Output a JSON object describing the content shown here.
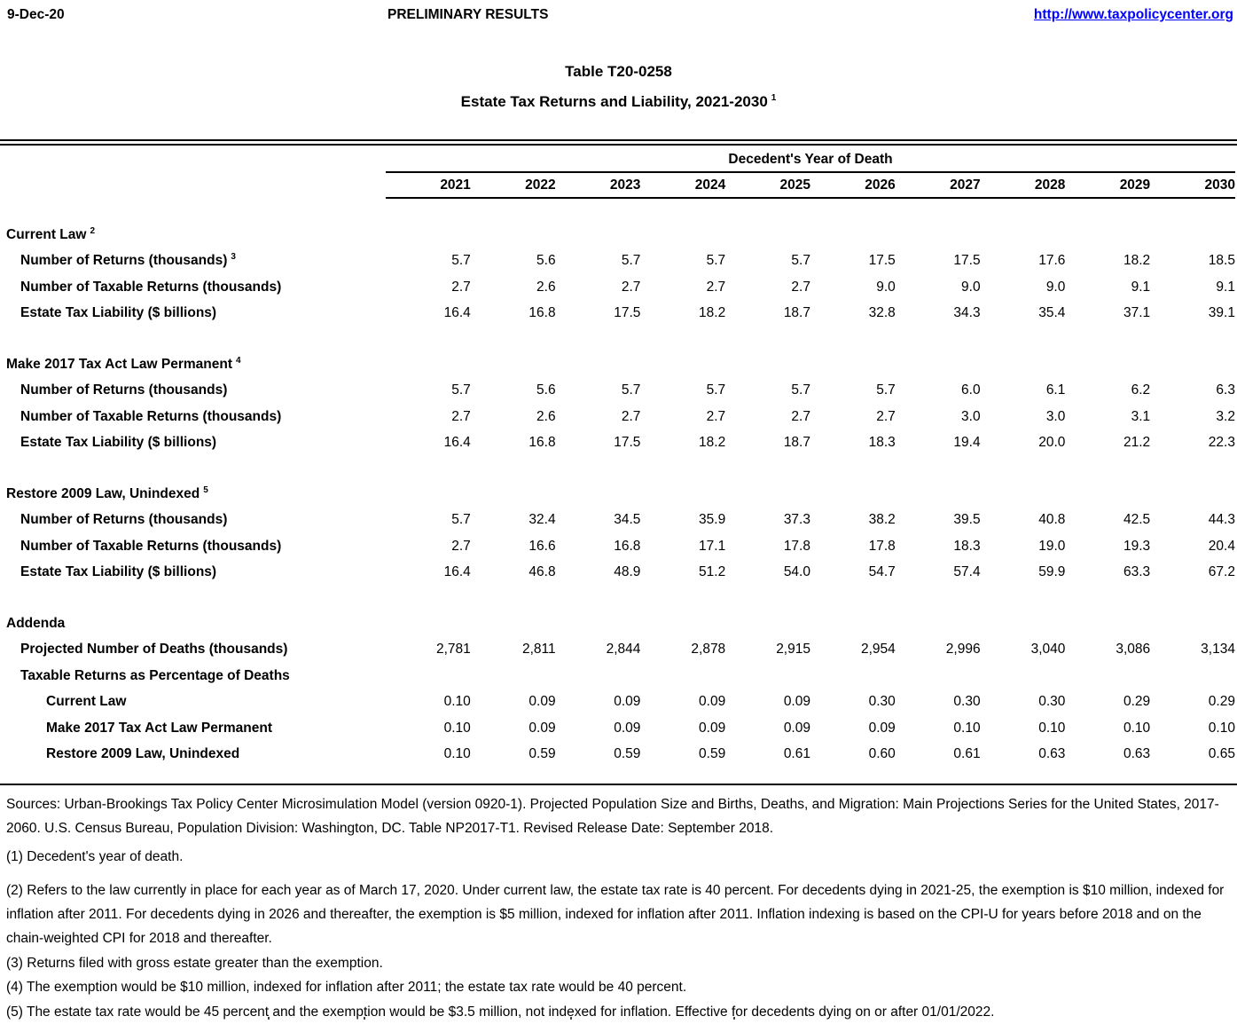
{
  "header": {
    "date": "9-Dec-20",
    "status": "PRELIMINARY RESULTS",
    "url": "http://www.taxpolicycenter.org"
  },
  "title": {
    "line1": "Table T20-0258",
    "line2": "Estate Tax Returns and Liability, 2021-2030",
    "footnote": "1"
  },
  "table": {
    "span_header": "Decedent's Year of Death",
    "years": [
      "2021",
      "2022",
      "2023",
      "2024",
      "2025",
      "2026",
      "2027",
      "2028",
      "2029",
      "2030"
    ],
    "sections": [
      {
        "title": "Current Law",
        "footnote": "2",
        "rows": [
          {
            "label": "Number of Returns (thousands)",
            "footnote": "3",
            "indent": 1,
            "values": [
              "5.7",
              "5.6",
              "5.7",
              "5.7",
              "5.7",
              "17.5",
              "17.5",
              "17.6",
              "18.2",
              "18.5"
            ]
          },
          {
            "label": "Number of Taxable Returns (thousands)",
            "indent": 1,
            "values": [
              "2.7",
              "2.6",
              "2.7",
              "2.7",
              "2.7",
              "9.0",
              "9.0",
              "9.0",
              "9.1",
              "9.1"
            ]
          },
          {
            "label": "Estate Tax Liability ($ billions)",
            "indent": 1,
            "values": [
              "16.4",
              "16.8",
              "17.5",
              "18.2",
              "18.7",
              "32.8",
              "34.3",
              "35.4",
              "37.1",
              "39.1"
            ]
          }
        ]
      },
      {
        "title": "Make 2017 Tax Act Law Permanent",
        "footnote": "4",
        "rows": [
          {
            "label": "Number of Returns (thousands)",
            "indent": 1,
            "values": [
              "5.7",
              "5.6",
              "5.7",
              "5.7",
              "5.7",
              "5.7",
              "6.0",
              "6.1",
              "6.2",
              "6.3"
            ]
          },
          {
            "label": "Number of Taxable Returns (thousands)",
            "indent": 1,
            "values": [
              "2.7",
              "2.6",
              "2.7",
              "2.7",
              "2.7",
              "2.7",
              "3.0",
              "3.0",
              "3.1",
              "3.2"
            ]
          },
          {
            "label": "Estate Tax Liability ($ billions)",
            "indent": 1,
            "values": [
              "16.4",
              "16.8",
              "17.5",
              "18.2",
              "18.7",
              "18.3",
              "19.4",
              "20.0",
              "21.2",
              "22.3"
            ]
          }
        ]
      },
      {
        "title": "Restore 2009 Law, Unindexed",
        "footnote": "5",
        "rows": [
          {
            "label": "Number of Returns (thousands)",
            "indent": 1,
            "values": [
              "5.7",
              "32.4",
              "34.5",
              "35.9",
              "37.3",
              "38.2",
              "39.5",
              "40.8",
              "42.5",
              "44.3"
            ]
          },
          {
            "label": "Number of Taxable Returns (thousands)",
            "indent": 1,
            "values": [
              "2.7",
              "16.6",
              "16.8",
              "17.1",
              "17.8",
              "17.8",
              "18.3",
              "19.0",
              "19.3",
              "20.4"
            ]
          },
          {
            "label": "Estate Tax Liability ($ billions)",
            "indent": 1,
            "values": [
              "16.4",
              "46.8",
              "48.9",
              "51.2",
              "54.0",
              "54.7",
              "57.4",
              "59.9",
              "63.3",
              "67.2"
            ]
          }
        ]
      },
      {
        "title": "Addenda",
        "footnote": "",
        "rows": [
          {
            "label": "Projected Number of Deaths (thousands)",
            "indent": 1,
            "values": [
              "2,781",
              "2,811",
              "2,844",
              "2,878",
              "2,915",
              "2,954",
              "2,996",
              "3,040",
              "3,086",
              "3,134"
            ]
          },
          {
            "label": "Taxable Returns as Percentage of Deaths",
            "indent": 1,
            "values": [
              "",
              "",
              "",
              "",
              "",
              "",
              "",
              "",
              "",
              ""
            ]
          },
          {
            "label": "Current Law",
            "indent": 2,
            "values": [
              "0.10",
              "0.09",
              "0.09",
              "0.09",
              "0.09",
              "0.30",
              "0.30",
              "0.30",
              "0.29",
              "0.29"
            ]
          },
          {
            "label": "Make 2017 Tax Act Law Permanent",
            "indent": 2,
            "values": [
              "0.10",
              "0.09",
              "0.09",
              "0.09",
              "0.09",
              "0.09",
              "0.10",
              "0.10",
              "0.10",
              "0.10"
            ]
          },
          {
            "label": "Restore 2009 Law, Unindexed",
            "indent": 2,
            "values": [
              "0.10",
              "0.59",
              "0.59",
              "0.59",
              "0.61",
              "0.60",
              "0.61",
              "0.63",
              "0.63",
              "0.65"
            ]
          }
        ]
      }
    ]
  },
  "footer": {
    "sources": "Sources: Urban-Brookings Tax Policy Center Microsimulation Model (version 0920-1). Projected Population Size and Births, Deaths, and Migration: Main Projections Series for the United States, 2017-2060. U.S. Census Bureau, Population Division: Washington, DC. Table NP2017-T1. Revised Release Date: September 2018.",
    "notes": [
      "(1) Decedent's year of death.",
      "(2) Refers to the law currently in place for each year as of March 17, 2020. Under current law, the estate tax rate is 40 percent. For decedents dying in 2021-25, the exemption is $10 million, indexed for inflation after 2011. For decedents dying in 2026 and thereafter, the exemption is $5 million, indexed for inflation after 2011. Inflation indexing is based on the CPI-U for years before 2018 and on the chain-weighted CPI for 2018 and thereafter.",
      "(3) Returns filed with gross estate greater than the exemption.",
      "(4) The exemption would be $10 million, indexed for inflation after 2011; the estate tax rate would be 40 percent.",
      "(5) The estate tax rate would be 45 percent and the exemption would be $3.5 million, not indexed for inflation. Effective for decedents dying on or after 01/01/2022."
    ]
  }
}
